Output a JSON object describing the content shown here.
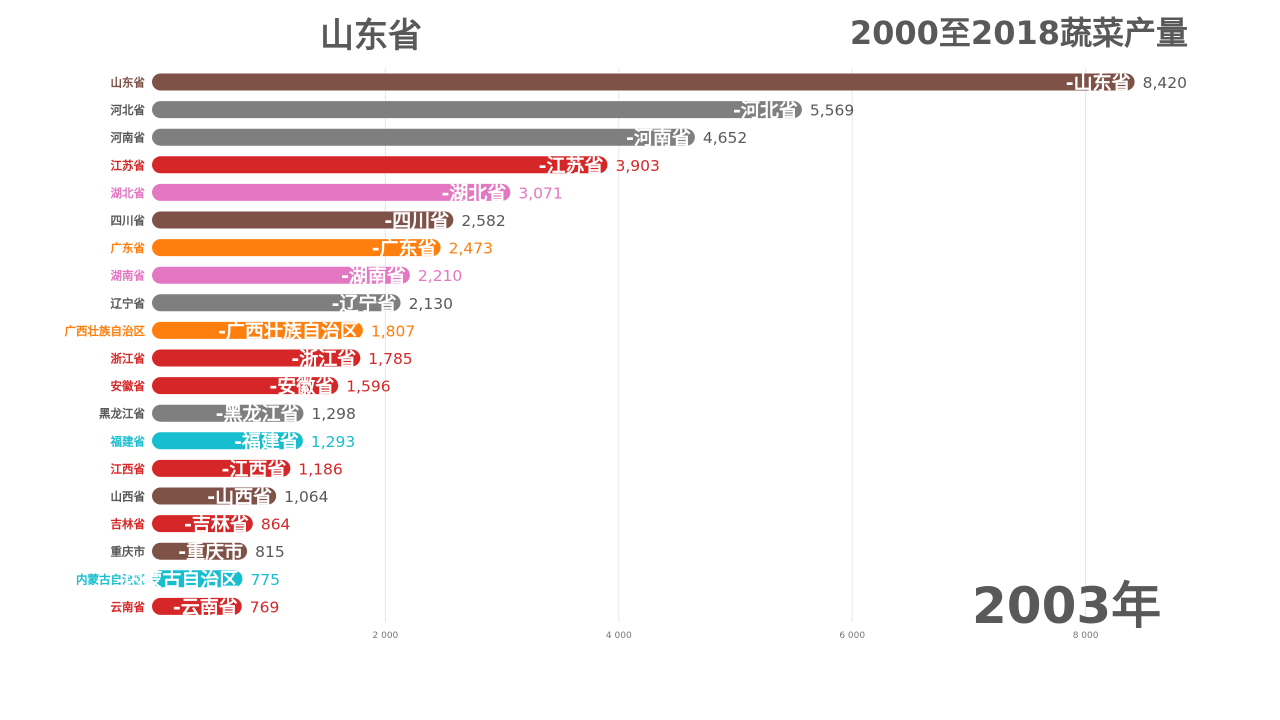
{
  "leader_label": "山东省",
  "chart_data": {
    "type": "bar",
    "orientation": "horizontal",
    "title": "2000至2018蔬菜产量",
    "period_label": "2003年",
    "x_ticks": [
      2000,
      4000,
      6000,
      8000
    ],
    "x_tick_labels": [
      "2 000",
      "4 000",
      "6 000",
      "8 000"
    ],
    "xlim": [
      0,
      8420
    ],
    "categories": [
      "山东省",
      "河北省",
      "河南省",
      "江苏省",
      "湖北省",
      "四川省",
      "广东省",
      "湖南省",
      "辽宁省",
      "广西壮族自治区",
      "浙江省",
      "安徽省",
      "黑龙江省",
      "福建省",
      "江西省",
      "山西省",
      "吉林省",
      "重庆市",
      "内蒙古自治区",
      "云南省"
    ],
    "values": [
      8420,
      5569,
      4652,
      3903,
      3071,
      2582,
      2473,
      2210,
      2130,
      1807,
      1785,
      1596,
      1298,
      1293,
      1186,
      1064,
      864,
      815,
      775,
      769
    ],
    "value_labels": [
      "8,420",
      "5,569",
      "4,652",
      "3,903",
      "3,071",
      "2,582",
      "2,473",
      "2,210",
      "2,130",
      "1,807",
      "1,785",
      "1,596",
      "1,298",
      "1,293",
      "1,186",
      "1,064",
      "864",
      "815",
      "775",
      "769"
    ],
    "bar_labels": [
      "-山东省",
      "-河北省",
      "-河南省",
      "-江苏省",
      "-湖北省",
      "-四川省",
      "-广东省",
      "-湖南省",
      "-辽宁省",
      "-广西壮族自治区",
      "-浙江省",
      "-安徽省",
      "-黑龙江省",
      "-福建省",
      "-江西省",
      "-山西省",
      "-吉林省",
      "-重庆市",
      "-内蒙古自治区",
      "-云南省"
    ],
    "colors": [
      "#7f5248",
      "#7f7f7f",
      "#7f7f7f",
      "#d62728",
      "#e377c2",
      "#7f5248",
      "#ff7f0e",
      "#e377c2",
      "#7f7f7f",
      "#ff7f0e",
      "#d62728",
      "#d62728",
      "#7f7f7f",
      "#17becf",
      "#d62728",
      "#7f5248",
      "#d62728",
      "#7f5248",
      "#17becf",
      "#d62728"
    ],
    "label_colors": [
      "#7f5248",
      "#595959",
      "#595959",
      "#d62728",
      "#e377c2",
      "#595959",
      "#ff7f0e",
      "#e377c2",
      "#595959",
      "#ff7f0e",
      "#d62728",
      "#d62728",
      "#595959",
      "#17becf",
      "#d62728",
      "#595959",
      "#d62728",
      "#595959",
      "#17becf",
      "#d62728"
    ],
    "value_colors": [
      "#595959",
      "#595959",
      "#595959",
      "#d62728",
      "#e377c2",
      "#595959",
      "#ff7f0e",
      "#e377c2",
      "#595959",
      "#ff7f0e",
      "#d62728",
      "#d62728",
      "#595959",
      "#17becf",
      "#d62728",
      "#595959",
      "#d62728",
      "#595959",
      "#17becf",
      "#d62728"
    ],
    "grid": true
  }
}
